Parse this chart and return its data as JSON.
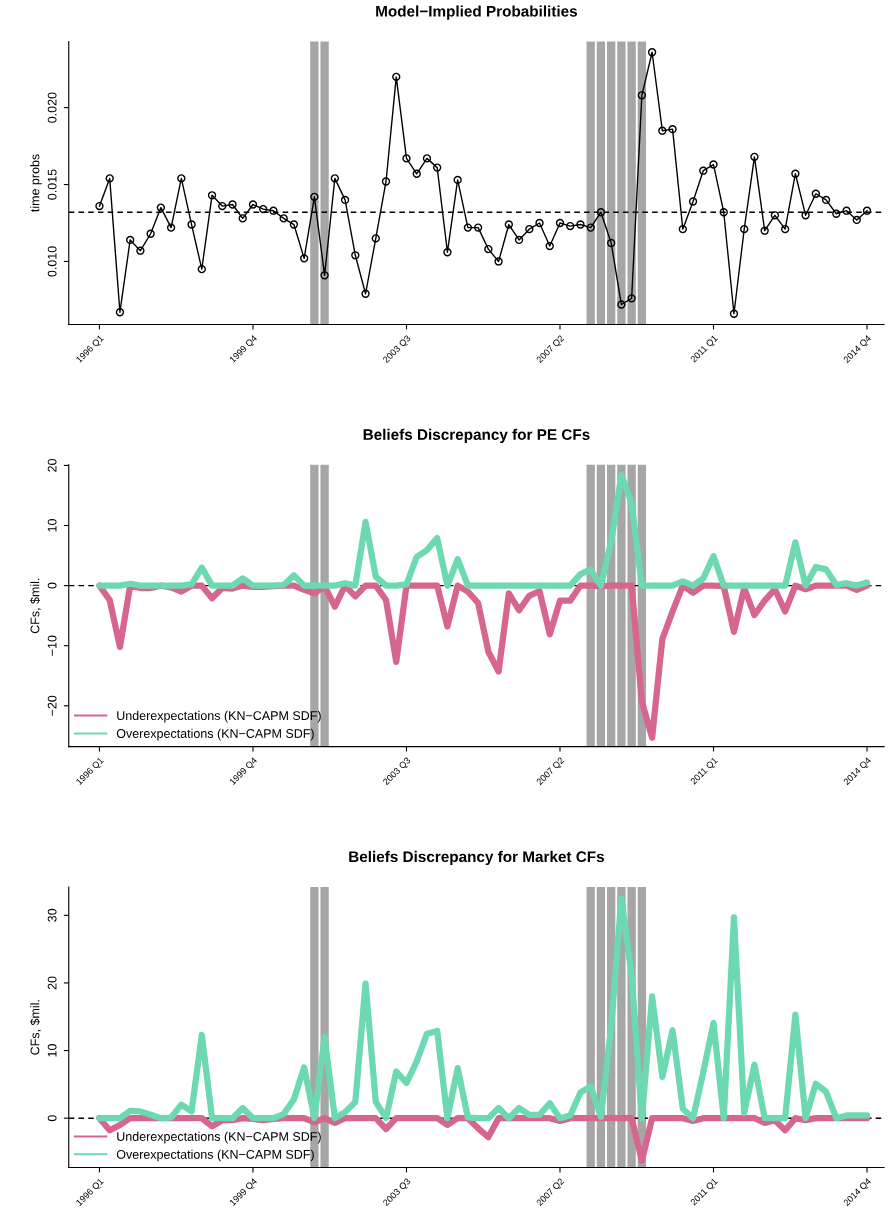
{
  "chart_data": [
    {
      "type": "line",
      "title": "Model−Implied Probabilities",
      "ylabel": "time probs",
      "marker": "circle",
      "grid": false,
      "legend": false,
      "x": [
        "1996-01",
        "1996-04",
        "1996-07",
        "1996-10",
        "1997-01",
        "1997-04",
        "1997-07",
        "1997-10",
        "1998-01",
        "1998-04",
        "1998-07",
        "1998-10",
        "1999-01",
        "1999-04",
        "1999-07",
        "1999-10",
        "2000-01",
        "2000-04",
        "2000-07",
        "2000-10",
        "2001-01",
        "2001-04",
        "2001-07",
        "2001-10",
        "2002-01",
        "2002-04",
        "2002-07",
        "2002-10",
        "2003-01",
        "2003-04",
        "2003-07",
        "2003-10",
        "2004-01",
        "2004-04",
        "2004-07",
        "2004-10",
        "2005-01",
        "2005-04",
        "2005-07",
        "2005-10",
        "2006-01",
        "2006-04",
        "2006-07",
        "2006-10",
        "2007-01",
        "2007-04",
        "2007-07",
        "2007-10",
        "2008-01",
        "2008-04",
        "2008-07",
        "2008-10",
        "2009-01",
        "2009-04",
        "2009-07",
        "2009-10",
        "2010-01",
        "2010-04",
        "2010-07",
        "2010-10",
        "2011-01",
        "2011-04",
        "2011-07",
        "2011-10",
        "2012-01",
        "2012-04",
        "2012-07",
        "2012-10",
        "2013-01",
        "2013-04",
        "2013-07",
        "2013-10",
        "2014-01",
        "2014-04",
        "2014-07",
        "2014-10"
      ],
      "series": [
        {
          "color": "#000000",
          "values": [
            0.0136,
            0.0154,
            0.0067,
            0.0114,
            0.0107,
            0.0118,
            0.0135,
            0.0122,
            0.0154,
            0.0124,
            0.0095,
            0.0143,
            0.0136,
            0.0137,
            0.0128,
            0.0137,
            0.0134,
            0.0133,
            0.0128,
            0.0124,
            0.0102,
            0.0142,
            0.0091,
            0.0154,
            0.014,
            0.0104,
            0.0079,
            0.0115,
            0.0152,
            0.022,
            0.0167,
            0.0157,
            0.0167,
            0.0161,
            0.0106,
            0.0153,
            0.0122,
            0.0122,
            0.0108,
            0.01,
            0.0124,
            0.0114,
            0.0121,
            0.0125,
            0.011,
            0.0125,
            0.0123,
            0.0124,
            0.0122,
            0.0132,
            0.0112,
            0.0072,
            0.0076,
            0.0208,
            0.0236,
            0.0185,
            0.0186,
            0.0121,
            0.0139,
            0.0159,
            0.0163,
            0.0132,
            0.0066,
            0.0121,
            0.0168,
            0.012,
            0.013,
            0.0121,
            0.0157,
            0.013,
            0.0144,
            0.014,
            0.0131,
            0.0133,
            0.0127,
            0.0133
          ]
        }
      ],
      "xlim": [
        "1995-04",
        "2015-03"
      ],
      "ylim": [
        0.0059,
        0.0243
      ],
      "xticks": [
        {
          "value": "1996-01",
          "label": "1996 Q1"
        },
        {
          "value": "1999-10",
          "label": "1999 Q4"
        },
        {
          "value": "2003-07",
          "label": "2003 Q3"
        },
        {
          "value": "2007-04",
          "label": "2007 Q2"
        },
        {
          "value": "2011-01",
          "label": "2011 Q1"
        },
        {
          "value": "2014-10",
          "label": "2014 Q4"
        }
      ],
      "yticks": [
        {
          "value": 0.01,
          "label": "0.010"
        },
        {
          "value": 0.015,
          "label": "0.015"
        },
        {
          "value": 0.02,
          "label": "0.020"
        }
      ],
      "ref_lines": [
        {
          "axis": "x",
          "value": "2001-04",
          "color": "#a6a6a6"
        },
        {
          "axis": "x",
          "value": "2001-07",
          "color": "#a6a6a6"
        },
        {
          "axis": "x",
          "value": "2008-01",
          "color": "#a6a6a6"
        },
        {
          "axis": "x",
          "value": "2008-04",
          "color": "#a6a6a6"
        },
        {
          "axis": "x",
          "value": "2008-07",
          "color": "#a6a6a6"
        },
        {
          "axis": "x",
          "value": "2008-10",
          "color": "#a6a6a6"
        },
        {
          "axis": "x",
          "value": "2009-01",
          "color": "#a6a6a6"
        },
        {
          "axis": "x",
          "value": "2009-04",
          "color": "#a6a6a6"
        },
        {
          "axis": "y",
          "value": 0.0132,
          "color": "#000000",
          "line_style": "dashed"
        }
      ]
    },
    {
      "type": "line",
      "title": "Beliefs Discrepancy for PE CFs",
      "ylabel": "CFs, $mil.",
      "grid": false,
      "legend": "bottom left",
      "x": [
        "1996-01",
        "1996-04",
        "1996-07",
        "1996-10",
        "1997-01",
        "1997-04",
        "1997-07",
        "1997-10",
        "1998-01",
        "1998-04",
        "1998-07",
        "1998-10",
        "1999-01",
        "1999-04",
        "1999-07",
        "1999-10",
        "2000-01",
        "2000-04",
        "2000-07",
        "2000-10",
        "2001-01",
        "2001-04",
        "2001-07",
        "2001-10",
        "2002-01",
        "2002-04",
        "2002-07",
        "2002-10",
        "2003-01",
        "2003-04",
        "2003-07",
        "2003-10",
        "2004-01",
        "2004-04",
        "2004-07",
        "2004-10",
        "2005-01",
        "2005-04",
        "2005-07",
        "2005-10",
        "2006-01",
        "2006-04",
        "2006-07",
        "2006-10",
        "2007-01",
        "2007-04",
        "2007-07",
        "2007-10",
        "2008-01",
        "2008-04",
        "2008-07",
        "2008-10",
        "2009-01",
        "2009-04",
        "2009-07",
        "2009-10",
        "2010-01",
        "2010-04",
        "2010-07",
        "2010-10",
        "2011-01",
        "2011-04",
        "2011-07",
        "2011-10",
        "2012-01",
        "2012-04",
        "2012-07",
        "2012-10",
        "2013-01",
        "2013-04",
        "2013-07",
        "2013-10",
        "2014-01",
        "2014-04",
        "2014-07",
        "2014-10"
      ],
      "series": [
        {
          "name": "Underexpectations (KN−CAPM SDF)",
          "color": "#d6668f",
          "values": [
            0,
            -2.4,
            -10.2,
            0,
            -0.4,
            -0.4,
            0,
            -0.3,
            -1.0,
            0,
            0,
            -2.1,
            -0.4,
            -0.5,
            0,
            -0.2,
            -0.2,
            -0.1,
            0,
            0,
            -0.7,
            -1.3,
            -0.1,
            -3.5,
            0,
            -1.8,
            0,
            0,
            -2.4,
            -12.7,
            0,
            0,
            0,
            0,
            -6.8,
            0,
            -1.0,
            -2.9,
            -11.0,
            -14.3,
            -1.3,
            -4.1,
            -1.7,
            -0.9,
            -8.1,
            -2.5,
            -2.5,
            0,
            0,
            -0.1,
            0,
            0,
            0,
            -19.3,
            -25.3,
            -8.9,
            -4.3,
            0,
            -1.2,
            0,
            0,
            -0.1,
            -7.7,
            -0.4,
            -4.9,
            -2.5,
            -0.6,
            -4.3,
            0,
            -0.6,
            0,
            0,
            0,
            0,
            -0.7,
            0
          ]
        },
        {
          "name": "Overexpectations (KN−CAPM SDF)",
          "color": "#6dd9b0",
          "values": [
            0,
            0,
            0,
            0.3,
            0,
            0,
            0,
            0,
            0,
            0.2,
            3.0,
            0,
            0,
            0,
            1.2,
            0,
            0,
            0,
            0.1,
            1.7,
            0,
            0,
            0,
            0,
            0.4,
            0,
            10.6,
            1.5,
            0,
            0,
            0.2,
            4.8,
            5.9,
            7.9,
            0,
            4.4,
            0,
            0,
            0,
            0,
            0,
            0,
            0,
            0,
            0,
            0,
            0,
            1.9,
            2.7,
            0,
            7.3,
            18.4,
            13.7,
            0,
            0,
            0,
            0,
            0.7,
            0,
            1.2,
            4.9,
            0,
            0,
            0,
            0,
            0,
            0,
            0,
            7.2,
            0,
            3.1,
            2.7,
            0.1,
            0.4,
            0,
            0.5
          ]
        }
      ],
      "xlim": [
        "1995-04",
        "2015-03"
      ],
      "ylim": [
        -26.8,
        20.1
      ],
      "xticks": [
        {
          "value": "1996-01",
          "label": "1996 Q1"
        },
        {
          "value": "1999-10",
          "label": "1999 Q4"
        },
        {
          "value": "2003-07",
          "label": "2003 Q3"
        },
        {
          "value": "2007-04",
          "label": "2007 Q2"
        },
        {
          "value": "2011-01",
          "label": "2011 Q1"
        },
        {
          "value": "2014-10",
          "label": "2014 Q4"
        }
      ],
      "yticks": [
        {
          "value": -20,
          "label": "−20"
        },
        {
          "value": -10,
          "label": "−10"
        },
        0,
        10,
        20
      ],
      "ref_lines": [
        {
          "axis": "x",
          "value": "2001-04",
          "color": "#a6a6a6"
        },
        {
          "axis": "x",
          "value": "2001-07",
          "color": "#a6a6a6"
        },
        {
          "axis": "x",
          "value": "2008-01",
          "color": "#a6a6a6"
        },
        {
          "axis": "x",
          "value": "2008-04",
          "color": "#a6a6a6"
        },
        {
          "axis": "x",
          "value": "2008-07",
          "color": "#a6a6a6"
        },
        {
          "axis": "x",
          "value": "2008-10",
          "color": "#a6a6a6"
        },
        {
          "axis": "x",
          "value": "2009-01",
          "color": "#a6a6a6"
        },
        {
          "axis": "x",
          "value": "2009-04",
          "color": "#a6a6a6"
        },
        {
          "axis": "y",
          "value": 0,
          "color": "#000000",
          "line_style": "dashed"
        }
      ]
    },
    {
      "type": "line",
      "title": "Beliefs Discrepancy for Market CFs",
      "ylabel": "CFs, $mil.",
      "grid": false,
      "legend": "bottom left",
      "x": [
        "1996-01",
        "1996-04",
        "1996-07",
        "1996-10",
        "1997-01",
        "1997-04",
        "1997-07",
        "1997-10",
        "1998-01",
        "1998-04",
        "1998-07",
        "1998-10",
        "1999-01",
        "1999-04",
        "1999-07",
        "1999-10",
        "2000-01",
        "2000-04",
        "2000-07",
        "2000-10",
        "2001-01",
        "2001-04",
        "2001-07",
        "2001-10",
        "2002-01",
        "2002-04",
        "2002-07",
        "2002-10",
        "2003-01",
        "2003-04",
        "2003-07",
        "2003-10",
        "2004-01",
        "2004-04",
        "2004-07",
        "2004-10",
        "2005-01",
        "2005-04",
        "2005-07",
        "2005-10",
        "2006-01",
        "2006-04",
        "2006-07",
        "2006-10",
        "2007-01",
        "2007-04",
        "2007-07",
        "2007-10",
        "2008-01",
        "2008-04",
        "2008-07",
        "2008-10",
        "2009-01",
        "2009-04",
        "2009-07",
        "2009-10",
        "2010-01",
        "2010-04",
        "2010-07",
        "2010-10",
        "2011-01",
        "2011-04",
        "2011-07",
        "2011-10",
        "2012-01",
        "2012-04",
        "2012-07",
        "2012-10",
        "2013-01",
        "2013-04",
        "2013-07",
        "2013-10",
        "2014-01",
        "2014-04",
        "2014-07",
        "2014-10"
      ],
      "series": [
        {
          "name": "Underexpectations (KN−CAPM SDF)",
          "color": "#d6668f",
          "values": [
            0,
            -1.8,
            -1.0,
            0,
            0,
            0,
            0,
            0,
            0,
            0,
            0,
            -1.2,
            -0.3,
            -0.3,
            0,
            -0.1,
            -0.3,
            -0.1,
            0,
            0,
            0,
            -0.6,
            0,
            -0.7,
            0,
            0,
            0,
            0,
            -1.6,
            0,
            0,
            0,
            0,
            0,
            -1.0,
            0,
            0,
            -1.5,
            -2.8,
            0,
            0,
            0,
            0,
            0,
            0,
            -0.4,
            0,
            0,
            0,
            0,
            0,
            0,
            0,
            -6.3,
            0,
            0,
            0,
            0,
            -0.4,
            0,
            0,
            0,
            0,
            0,
            0,
            -0.7,
            -0.3,
            -1.8,
            0,
            -0.3,
            0,
            0,
            0,
            0,
            0,
            0
          ]
        },
        {
          "name": "Overexpectations (KN−CAPM SDF)",
          "color": "#6dd9b0",
          "values": [
            0,
            0,
            0,
            1.1,
            1.0,
            0.5,
            0,
            0.1,
            2.0,
            1.0,
            12.3,
            0,
            0,
            0,
            1.5,
            0,
            0,
            0,
            0.6,
            2.8,
            7.5,
            0,
            12.0,
            0,
            0.9,
            2.4,
            19.9,
            2.4,
            0,
            6.9,
            5.2,
            8.4,
            12.5,
            12.9,
            0,
            7.4,
            0.1,
            0,
            0,
            1.5,
            0,
            1.5,
            0.5,
            0.5,
            2.2,
            0,
            0.4,
            3.8,
            4.7,
            0.2,
            13.5,
            32.5,
            21.1,
            0,
            18.0,
            6.1,
            13.0,
            1.4,
            0,
            6.8,
            14.1,
            0,
            29.7,
            0.8,
            7.9,
            0,
            0,
            0,
            15.3,
            0,
            5.1,
            3.9,
            0,
            0.4,
            0.4,
            0.4
          ]
        }
      ],
      "xlim": [
        "1995-04",
        "2015-03"
      ],
      "ylim": [
        -7.3,
        34.2
      ],
      "xticks": [
        {
          "value": "1996-01",
          "label": "1996 Q1"
        },
        {
          "value": "1999-10",
          "label": "1999 Q4"
        },
        {
          "value": "2003-07",
          "label": "2003 Q3"
        },
        {
          "value": "2007-04",
          "label": "2007 Q2"
        },
        {
          "value": "2011-01",
          "label": "2011 Q1"
        },
        {
          "value": "2014-10",
          "label": "2014 Q4"
        }
      ],
      "yticks": [
        0,
        10,
        20,
        30
      ],
      "ref_lines": [
        {
          "axis": "x",
          "value": "2001-04",
          "color": "#a6a6a6"
        },
        {
          "axis": "x",
          "value": "2001-07",
          "color": "#a6a6a6"
        },
        {
          "axis": "x",
          "value": "2008-01",
          "color": "#a6a6a6"
        },
        {
          "axis": "x",
          "value": "2008-04",
          "color": "#a6a6a6"
        },
        {
          "axis": "x",
          "value": "2008-07",
          "color": "#a6a6a6"
        },
        {
          "axis": "x",
          "value": "2008-10",
          "color": "#a6a6a6"
        },
        {
          "axis": "x",
          "value": "2009-01",
          "color": "#a6a6a6"
        },
        {
          "axis": "x",
          "value": "2009-04",
          "color": "#a6a6a6"
        },
        {
          "axis": "y",
          "value": 0,
          "color": "#000000",
          "line_style": "dashed"
        }
      ]
    }
  ]
}
